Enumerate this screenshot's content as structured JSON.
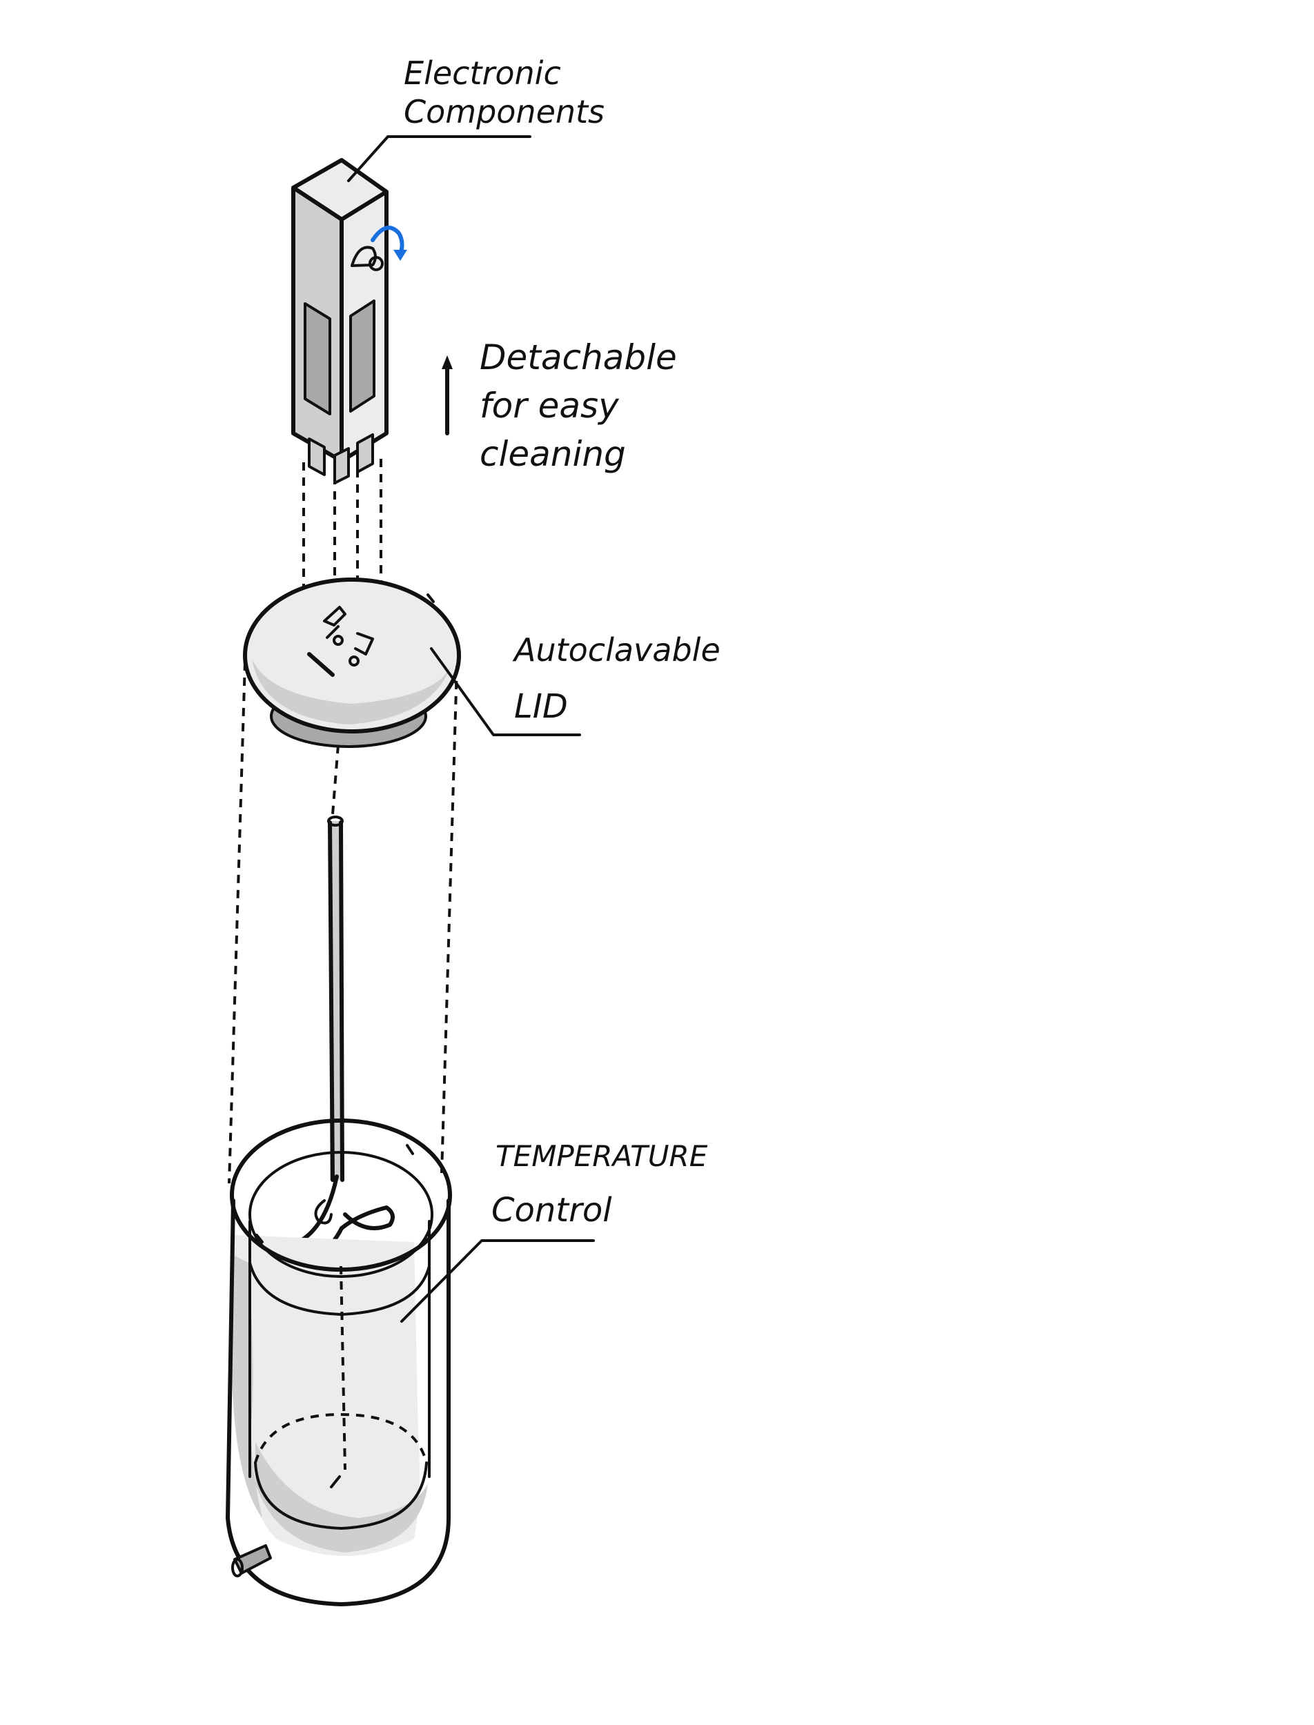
{
  "labels": {
    "electronic_components": [
      "Electronic",
      "Components"
    ],
    "detachable": [
      "Detachable",
      "for easy",
      "cleaning"
    ],
    "autoclavable_lid": [
      "Autoclavable",
      "LID"
    ],
    "temperature_control": [
      "TEMPERATURE",
      "Control"
    ]
  },
  "colors": {
    "ink": "#111111",
    "shade": "#cfcfcf",
    "rotation_arrow": "#1a6fe0"
  }
}
